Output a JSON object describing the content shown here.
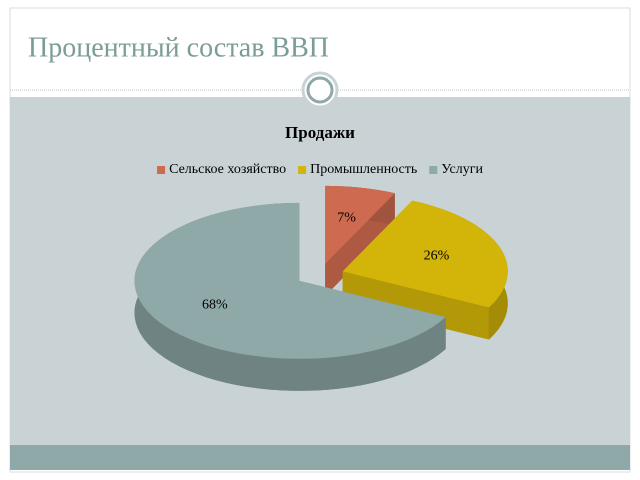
{
  "slide_title": "Процентный состав ВВП",
  "chart_data": {
    "type": "pie",
    "title": "Продажи",
    "categories": [
      "Сельское хозяйство",
      "Промышленность",
      "Услуги"
    ],
    "values": [
      7,
      26,
      68
    ],
    "value_labels": [
      "7%",
      "26%",
      "68%"
    ],
    "colors": [
      "#cd6a4f",
      "#d3b408",
      "#8fa8a8"
    ]
  }
}
